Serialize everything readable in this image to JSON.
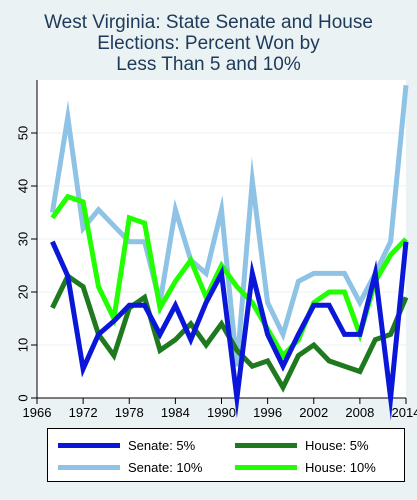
{
  "chart_data": {
    "type": "line",
    "title_lines": [
      "West Virginia: State Senate and House",
      "Elections: Percent Won by",
      "Less Than 5 and 10%"
    ],
    "xlim": [
      1966,
      2014
    ],
    "ylim": [
      0,
      60
    ],
    "x_ticks": [
      "1966",
      "1972",
      "1978",
      "1984",
      "1990",
      "1996",
      "2002",
      "2008",
      "2014"
    ],
    "y_ticks": [
      "0",
      "10",
      "20",
      "30",
      "40",
      "50"
    ],
    "grid": true,
    "legend_position": "bottom",
    "series": [
      {
        "name": "Senate: 10%",
        "color": "#8ec3e6",
        "x": [
          1968,
          1970,
          1972,
          1974,
          1976,
          1978,
          1980,
          1982,
          1984,
          1986,
          1988,
          1990,
          1992,
          1994,
          1996,
          1998,
          2000,
          2002,
          2004,
          2006,
          2008,
          2010,
          2012,
          2014
        ],
        "values": [
          35,
          53,
          32,
          35.5,
          32.5,
          29.5,
          29.5,
          18,
          35.5,
          26,
          23.5,
          35.5,
          6,
          41,
          18,
          12,
          22,
          23.5,
          23.5,
          23.5,
          18,
          23.5,
          29.5,
          59
        ]
      },
      {
        "name": "House: 10%",
        "color": "#22ff00",
        "x": [
          1968,
          1970,
          1972,
          1974,
          1976,
          1978,
          1980,
          1982,
          1984,
          1986,
          1988,
          1990,
          1992,
          1994,
          1996,
          1998,
          2000,
          2002,
          2004,
          2006,
          2008,
          2010,
          2012,
          2014
        ],
        "values": [
          34,
          38,
          37,
          21,
          15,
          34,
          33,
          17,
          22,
          26,
          19,
          25,
          21,
          18,
          13,
          8,
          11,
          18,
          20,
          20,
          12,
          22,
          27,
          30
        ]
      },
      {
        "name": "House: 5%",
        "color": "#1f7a1f",
        "x": [
          1968,
          1970,
          1972,
          1974,
          1976,
          1978,
          1980,
          1982,
          1984,
          1986,
          1988,
          1990,
          1992,
          1994,
          1996,
          1998,
          2000,
          2002,
          2004,
          2006,
          2008,
          2010,
          2012,
          2014
        ],
        "values": [
          17,
          23,
          21,
          12,
          8,
          17,
          19,
          9,
          11,
          14,
          10,
          14,
          9,
          6,
          7,
          2,
          8,
          10,
          7,
          6,
          5,
          11,
          12,
          19
        ]
      },
      {
        "name": "Senate: 5%",
        "color": "#0a16d8",
        "x": [
          1968,
          1970,
          1972,
          1974,
          1976,
          1978,
          1980,
          1982,
          1984,
          1986,
          1988,
          1990,
          1992,
          1994,
          1996,
          1998,
          2000,
          2002,
          2004,
          2006,
          2008,
          2010,
          2012,
          2014
        ],
        "values": [
          29.5,
          23,
          5.5,
          12,
          14.5,
          17.5,
          17.5,
          12,
          17.5,
          11,
          18,
          23.5,
          0,
          23.5,
          12,
          6,
          12,
          17.5,
          17.5,
          12,
          12,
          23.5,
          0,
          29.5
        ]
      }
    ]
  },
  "legend": {
    "items": [
      {
        "label": "Senate: 5%",
        "color": "#0a16d8"
      },
      {
        "label": "House: 5%",
        "color": "#1f7a1f"
      },
      {
        "label": "Senate: 10%",
        "color": "#8ec3e6"
      },
      {
        "label": "House: 10%",
        "color": "#22ff00"
      }
    ]
  },
  "colors": {
    "background": "#eaf2f3",
    "plot_background": "#ffffff",
    "grid": "#eaf2f3",
    "title": "#1e3a5a"
  }
}
